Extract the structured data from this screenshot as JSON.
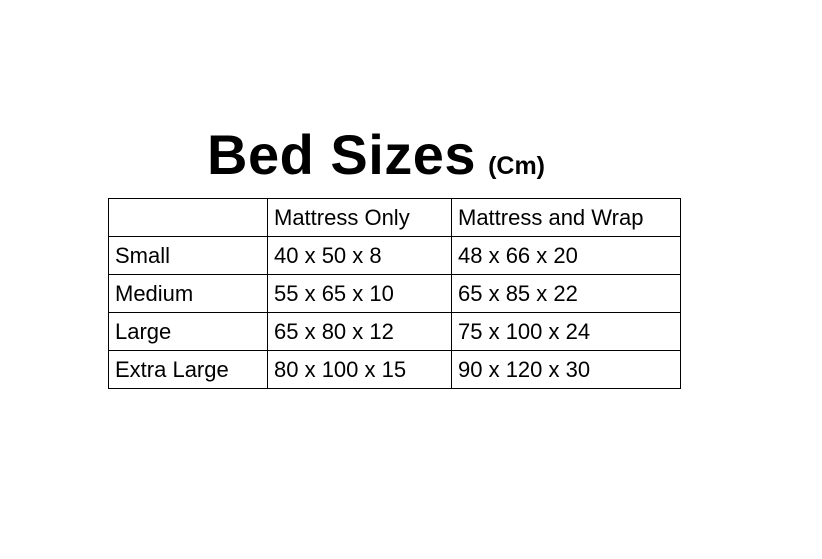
{
  "title": "Bed Sizes",
  "unit": "(Cm)",
  "table": {
    "headers": [
      "",
      "Mattress Only",
      "Mattress and Wrap"
    ],
    "rows": [
      [
        "Small",
        "40 x 50 x 8",
        "48 x 66 x 20"
      ],
      [
        "Medium",
        "55 x 65 x 10",
        "65 x 85 x 22"
      ],
      [
        "Large",
        "65 x 80 x 12",
        "75 x 100 x 24"
      ],
      [
        "Extra Large",
        "80 x 100 x 15",
        "90 x 120 x 30"
      ]
    ]
  }
}
